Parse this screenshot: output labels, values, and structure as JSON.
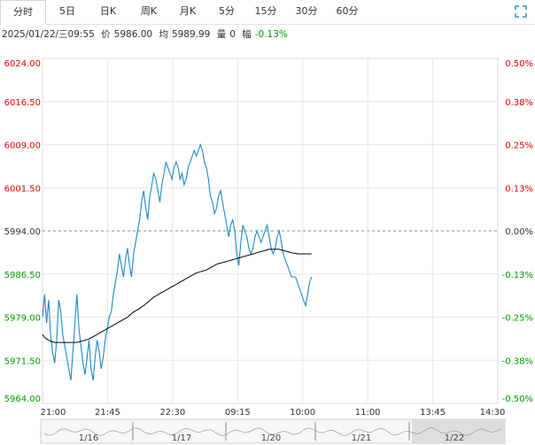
{
  "tabs": [
    {
      "label": "分时",
      "active": true
    },
    {
      "label": "5日",
      "active": false
    },
    {
      "label": "日K",
      "active": false
    },
    {
      "label": "周K",
      "active": false
    },
    {
      "label": "月K",
      "active": false
    },
    {
      "label": "5分",
      "active": false
    },
    {
      "label": "15分",
      "active": false
    },
    {
      "label": "30分",
      "active": false
    },
    {
      "label": "60分",
      "active": false
    }
  ],
  "expand_icon": "fullscreen-expand-icon",
  "info": {
    "datetime": "2025/01/22/三09:55",
    "price_label": "价",
    "price": "5986.00",
    "avg_label": "均",
    "avg": "5989.99",
    "volume_label": "量",
    "volume": "0",
    "change_label": "幅",
    "change": "-0.13%"
  },
  "colors": {
    "up": "#e60000",
    "down": "#009900",
    "flat": "#333333",
    "price_line": "#1e88c7",
    "avg_line": "#000000",
    "grid": "#e6e6e6",
    "dashed_mid": "#888888"
  },
  "chart_data": {
    "type": "line",
    "title": "",
    "reference_price": 5994.0,
    "ylim": [
      5964.0,
      6024.0
    ],
    "left_ticks": [
      "6024.00",
      "6016.50",
      "6009.00",
      "6001.50",
      "5994.00",
      "5986.50",
      "5979.00",
      "5971.50",
      "5964.00"
    ],
    "right_ticks": [
      "0.50%",
      "0.38%",
      "0.25%",
      "0.13%",
      "0.00%",
      "-0.13%",
      "-0.25%",
      "-0.38%",
      "-0.50%"
    ],
    "x_ticks": [
      "21:00",
      "21:45",
      "22:30",
      "09:15",
      "10:00",
      "11:00",
      "13:45",
      "14:30"
    ],
    "total_minutes": 225,
    "series": [
      {
        "values": [
          5979,
          5983,
          5978,
          5982,
          5976,
          5973,
          5971,
          5975,
          5982,
          5980,
          5976,
          5974,
          5972,
          5970,
          5968,
          5973,
          5978,
          5983,
          5977,
          5974,
          5971,
          5969,
          5972,
          5975,
          5970,
          5968,
          5972,
          5975,
          5973,
          5970,
          5972,
          5975,
          5977,
          5979,
          5980,
          5983,
          5985,
          5987,
          5990,
          5988,
          5986,
          5989,
          5991,
          5988,
          5986,
          5990,
          5992,
          5994,
          5996,
          5999,
          6001,
          5998,
          5996,
          6000,
          6002,
          6004,
          6003,
          6001,
          5999,
          6002,
          6004,
          6006,
          6005,
          6004,
          6003,
          6005,
          6006,
          6005,
          6003,
          6004,
          6002,
          6003,
          6005,
          6006,
          6007,
          6008,
          6007,
          6008,
          6009,
          6008,
          6006,
          6005,
          6003,
          6000,
          5999,
          5997,
          5998,
          6000,
          6001,
          5999,
          5997,
          5995,
          5993,
          5995,
          5996,
          5994,
          5990,
          5988,
          5992,
          5995,
          5994,
          5993,
          5991,
          5990,
          5991,
          5993,
          5994,
          5993,
          5992,
          5993,
          5994,
          5995,
          5993,
          5991,
          5990,
          5991,
          5993,
          5994,
          5992,
          5990,
          5989,
          5988,
          5987,
          5986,
          5986,
          5986,
          5985,
          5984,
          5983,
          5982,
          5981,
          5983,
          5985,
          5986
        ]
      },
      {
        "values": [
          5976.0,
          5975.5,
          5975.2,
          5975.0,
          5974.8,
          5974.7,
          5974.6,
          5974.6,
          5974.6,
          5974.6,
          5974.6,
          5974.6,
          5974.6,
          5974.6,
          5974.6,
          5974.6,
          5974.6,
          5974.6,
          5974.7,
          5974.8,
          5974.9,
          5975.0,
          5975.1,
          5975.2,
          5975.4,
          5975.6,
          5975.8,
          5976.0,
          5976.2,
          5976.4,
          5976.6,
          5976.8,
          5977.0,
          5977.2,
          5977.4,
          5977.6,
          5977.8,
          5978.0,
          5978.2,
          5978.4,
          5978.6,
          5978.8,
          5979.0,
          5979.3,
          5979.6,
          5979.9,
          5980.1,
          5980.3,
          5980.5,
          5980.8,
          5981.0,
          5981.3,
          5981.6,
          5981.9,
          5982.2,
          5982.5,
          5982.7,
          5982.9,
          5983.1,
          5983.3,
          5983.5,
          5983.7,
          5983.9,
          5984.1,
          5984.3,
          5984.5,
          5984.7,
          5984.9,
          5985.1,
          5985.3,
          5985.5,
          5985.7,
          5985.9,
          5986.1,
          5986.3,
          5986.5,
          5986.7,
          5986.8,
          5986.9,
          5987.0,
          5987.1,
          5987.2,
          5987.4,
          5987.6,
          5987.8,
          5988.0,
          5988.2,
          5988.3,
          5988.4,
          5988.5,
          5988.6,
          5988.7,
          5988.8,
          5988.9,
          5989.0,
          5989.1,
          5989.2,
          5989.3,
          5989.4,
          5989.5,
          5989.6,
          5989.7,
          5989.8,
          5989.9,
          5990.0,
          5990.1,
          5990.2,
          5990.3,
          5990.4,
          5990.5,
          5990.6,
          5990.7,
          5990.8,
          5990.8,
          5990.8,
          5990.8,
          5990.8,
          5990.8,
          5990.7,
          5990.6,
          5990.5,
          5990.4,
          5990.3,
          5990.2,
          5990.1,
          5990.1,
          5990.0,
          5990.0,
          5990.0,
          5990.0,
          5990.0,
          5990.0,
          5990.0,
          5990.0
        ]
      }
    ],
    "grid": true
  },
  "navigator": {
    "labels": [
      "1/16",
      "1/17",
      "1/20",
      "1/21",
      "1/22"
    ]
  }
}
